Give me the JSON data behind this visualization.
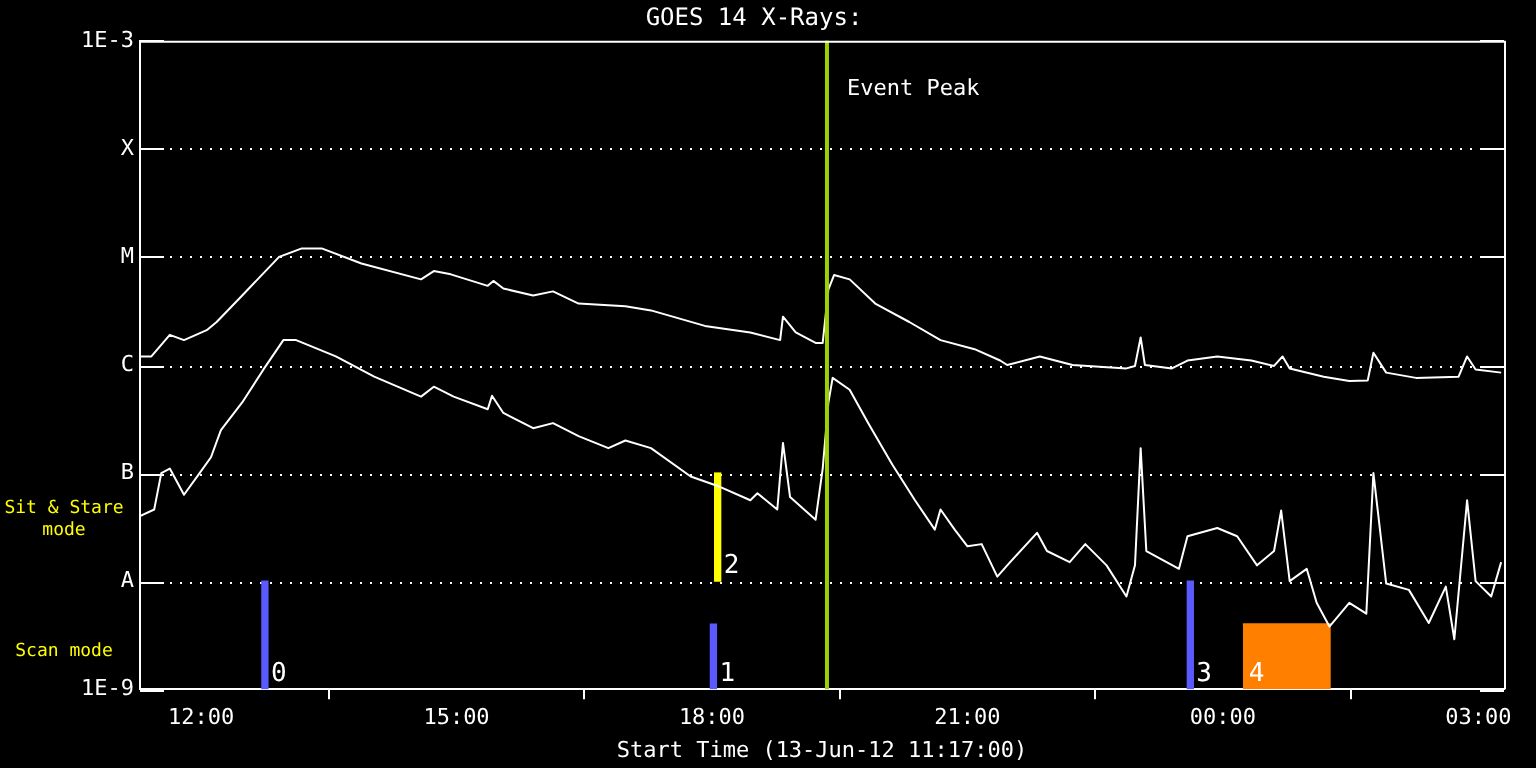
{
  "chart_data": {
    "type": "line",
    "title": "GOES 14 X-Rays:",
    "xlabel": "Start Time (13-Jun-12 11:17:00)",
    "xlim": [
      "--06-13T11:17",
      "--06-14T03:18"
    ],
    "xticks": [
      {
        "value": "--06-13T12:00",
        "label": "12:00"
      },
      {
        "value": "--06-13T15:00",
        "label": "15:00"
      },
      {
        "value": "--06-13T18:00",
        "label": "18:00"
      },
      {
        "value": "--06-13T21:00",
        "label": "21:00"
      },
      {
        "value": "--06-14T00:00",
        "label": "00:00"
      },
      {
        "value": "--06-14T03:00",
        "label": "03:00"
      }
    ],
    "ylim": [
      1e-09,
      0.001
    ],
    "log": true,
    "yticks": [
      {
        "value": 1e-09,
        "label": "1E-9"
      },
      {
        "value": 1e-08,
        "label": "A"
      },
      {
        "value": 1e-07,
        "label": "B"
      },
      {
        "value": 1e-06,
        "label": "C"
      },
      {
        "value": 1e-05,
        "label": "M"
      },
      {
        "value": 0.0001,
        "label": "X"
      },
      {
        "value": 0.001,
        "label": "1E-3"
      }
    ],
    "grid": "y",
    "legend": false,
    "marker": "none",
    "line_style": "solid",
    "series": [
      {
        "color": "#ffffff",
        "x": [
          "--06-13T11:17",
          "--06-13T11:25",
          "--06-13T11:38",
          "--06-13T11:48",
          "--06-13T12:04",
          "--06-13T12:11",
          "--06-13T12:29",
          "--06-13T12:55",
          "--06-13T13:11",
          "--06-13T13:25",
          "--06-13T13:53",
          "--06-13T14:35",
          "--06-13T14:44",
          "--06-13T14:56",
          "--06-13T15:22",
          "--06-13T15:26",
          "--06-13T15:33",
          "--06-13T15:54",
          "--06-13T16:08",
          "--06-13T16:26",
          "--06-13T16:59",
          "--06-13T17:17",
          "--06-13T17:55",
          "--06-13T18:27",
          "--06-13T18:48",
          "--06-13T18:50",
          "--06-13T18:59",
          "--06-13T19:13",
          "--06-13T19:18",
          "--06-13T19:22",
          "--06-13T19:26",
          "--06-13T19:37",
          "--06-13T19:55",
          "--06-13T20:19",
          "--06-13T20:41",
          "--06-13T21:05",
          "--06-13T21:23",
          "--06-13T21:28",
          "--06-13T21:51",
          "--06-13T22:14",
          "--06-13T22:52",
          "--06-13T22:58",
          "--06-13T23:02",
          "--06-13T23:05",
          "--06-13T23:24",
          "--06-13T23:35",
          "--06-13T23:56",
          "--06-14T00:20",
          "--06-14T00:36",
          "--06-14T00:42",
          "--06-14T00:47",
          "--06-14T01:11",
          "--06-14T01:29",
          "--06-14T01:42",
          "--06-14T01:46",
          "--06-14T01:55",
          "--06-14T02:16",
          "--06-14T02:46",
          "--06-14T02:52",
          "--06-14T02:58",
          "--06-14T03:16"
        ],
        "values": [
          1.2e-06,
          1.2e-06,
          1.9e-06,
          1.7e-06,
          2.1e-06,
          2.5e-06,
          4.4e-06,
          1e-05,
          1.2e-05,
          1.2e-05,
          8.7e-06,
          6.2e-06,
          7.4e-06,
          6.9e-06,
          5.4e-06,
          6e-06,
          5.1e-06,
          4.4e-06,
          4.8e-06,
          3.7e-06,
          3.5e-06,
          3.2e-06,
          2.3e-06,
          2e-06,
          1.7e-06,
          2.8e-06,
          2e-06,
          1.6e-06,
          1.6e-06,
          5e-06,
          6.8e-06,
          6.2e-06,
          3.7e-06,
          2.5e-06,
          1.7e-06,
          1.4e-06,
          1.1e-06,
          1e-06,
          1.2e-06,
          1e-06,
          9.3e-07,
          9.8e-07,
          1.8e-06,
          1e-06,
          9.3e-07,
          1.1e-06,
          1.2e-06,
          1.1e-06,
          9.8e-07,
          1.2e-06,
          9.3e-07,
          7.8e-07,
          7.1e-07,
          7.2e-07,
          1.3e-06,
          8.5e-07,
          7.6e-07,
          7.8e-07,
          1.2e-06,
          9.1e-07,
          8.5e-07
        ]
      },
      {
        "color": "#ffffff",
        "x": [
          "--06-13T11:17",
          "--06-13T11:27",
          "--06-13T11:32",
          "--06-13T11:38",
          "--06-13T11:48",
          "--06-13T11:59",
          "--06-13T12:07",
          "--06-13T12:14",
          "--06-13T12:29",
          "--06-13T12:44",
          "--06-13T12:58",
          "--06-13T13:07",
          "--06-13T13:35",
          "--06-13T14:02",
          "--06-13T14:35",
          "--06-13T14:44",
          "--06-13T14:58",
          "--06-13T15:22",
          "--06-13T15:25",
          "--06-13T15:33",
          "--06-13T15:54",
          "--06-13T16:08",
          "--06-13T16:26",
          "--06-13T16:47",
          "--06-13T16:59",
          "--06-13T17:17",
          "--06-13T17:45",
          "--06-13T18:04",
          "--06-13T18:27",
          "--06-13T18:32",
          "--06-13T18:46",
          "--06-13T18:50",
          "--06-13T18:55",
          "--06-13T19:13",
          "--06-13T19:18",
          "--06-13T19:22",
          "--06-13T19:25",
          "--06-13T19:37",
          "--06-13T19:50",
          "--06-13T20:07",
          "--06-13T20:23",
          "--06-13T20:37",
          "--06-13T20:41",
          "--06-13T20:51",
          "--06-13T21:00",
          "--06-13T21:10",
          "--06-13T21:21",
          "--06-13T21:28",
          "--06-13T21:49",
          "--06-13T21:56",
          "--06-13T22:12",
          "--06-13T22:23",
          "--06-13T22:38",
          "--06-13T22:52",
          "--06-13T22:58",
          "--06-13T23:02",
          "--06-13T23:06",
          "--06-13T23:29",
          "--06-13T23:35",
          "--06-13T23:56",
          "--06-14T00:10",
          "--06-14T00:24",
          "--06-14T00:36",
          "--06-14T00:41",
          "--06-14T00:47",
          "--06-14T00:59",
          "--06-14T01:06",
          "--06-14T01:15",
          "--06-14T01:29",
          "--06-14T01:41",
          "--06-14T01:46",
          "--06-14T01:55",
          "--06-14T02:11",
          "--06-14T02:25",
          "--06-14T02:37",
          "--06-14T02:43",
          "--06-14T02:52",
          "--06-14T02:58",
          "--06-14T03:09",
          "--06-14T03:16"
        ],
        "values": [
          4e-08,
          4.6e-08,
          1e-07,
          1.1e-07,
          6.3e-08,
          1e-07,
          1.4e-07,
          2.5e-07,
          4.5e-07,
          9.1e-07,
          1.7e-06,
          1.7e-06,
          1.2e-06,
          7.8e-07,
          5.1e-07,
          6.3e-07,
          5.1e-07,
          3.9e-07,
          5.2e-07,
          3.6e-07,
          2.6e-07,
          2.9e-07,
          2.2e-07,
          1.7e-07,
          2e-07,
          1.7e-07,
          9.3e-08,
          7.6e-08,
          5.6e-08,
          6.5e-08,
          4.6e-08,
          1.9e-07,
          6e-08,
          3.7e-08,
          1.1e-07,
          4.5e-07,
          7.6e-07,
          5.9e-07,
          2.9e-07,
          1.2e-07,
          5.6e-08,
          3e-08,
          4.6e-08,
          3e-08,
          2.1e-08,
          2.2e-08,
          1.1e-08,
          1.4e-08,
          2.8e-08,
          1.9e-08,
          1.5e-08,
          2.2e-08,
          1.4e-08,
          7.2e-09,
          1.4e-08,
          1.7e-07,
          1.9e-08,
          1.3e-08,
          2.6e-08,
          3.1e-08,
          2.6e-08,
          1.4e-08,
          1.9e-08,
          4.5e-08,
          1e-08,
          1.3e-08,
          6.3e-09,
          3.8e-09,
          6.3e-09,
          5e-09,
          1e-07,
          9.5e-09,
          8.3e-09,
          4.1e-09,
          8.9e-09,
          2.9e-09,
          5.6e-08,
          1e-08,
          7.2e-09,
          1.5e-08
        ]
      },
      {
        "type": "bar",
        "x": [
          "--06-13T12:45",
          "--06-13T18:01",
          "--06-13T18:04",
          "--06-13T23:37"
        ],
        "base": [
          1e-09,
          1e-09,
          1e-08,
          1e-09
        ],
        "values": [
          9e-09,
          3e-09,
          9e-08,
          9e-09
        ],
        "colors": [
          "#5a5aff",
          "#5a5aff",
          "#ffff00",
          "#5a5aff"
        ]
      },
      {
        "type": "area",
        "color": "#ff8000",
        "x": [
          "--06-14T00:14",
          "--06-14T01:16"
        ],
        "values": [
          4e-09,
          4e-09
        ]
      }
    ],
    "ref_lines": [
      {
        "axis": "x",
        "value": "--06-13T19:21",
        "label": "Event Peak",
        "color": "#a0d000"
      }
    ],
    "annotations": [
      "Sit & Stare mode",
      "Scan mode",
      {
        "text": "0",
        "x": "--06-13T12:45",
        "y": 1e-09
      },
      {
        "text": "1",
        "x": "--06-13T18:01",
        "y": 1e-09
      },
      {
        "text": "2",
        "x": "--06-13T18:04",
        "y": 1e-08
      },
      {
        "text": "3",
        "x": "--06-13T23:37",
        "y": 1e-09
      },
      {
        "text": "4",
        "x": "--06-14T00:14",
        "y": 1e-09
      }
    ]
  }
}
